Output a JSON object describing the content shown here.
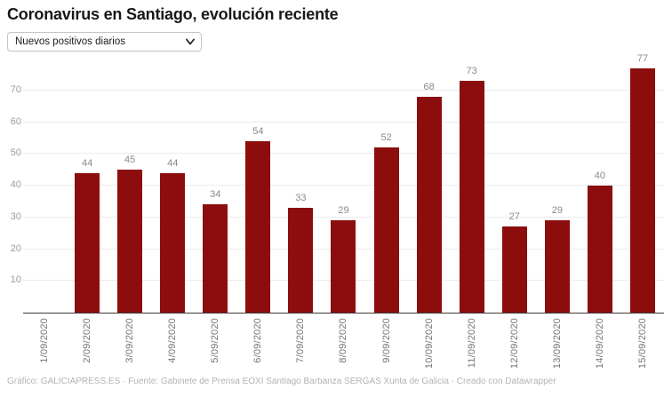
{
  "header": {
    "title": "Coronavirus en Santiago, evolución reciente",
    "metric_selector": {
      "selected": "Nuevos positivos diarios"
    }
  },
  "chart_data": {
    "type": "bar",
    "title": "Coronavirus en Santiago, evolución reciente",
    "categories": [
      "1/09/2020",
      "2/09/2020",
      "3/09/2020",
      "4/09/2020",
      "5/09/2020",
      "6/09/2020",
      "7/09/2020",
      "8/09/2020",
      "9/09/2020",
      "10/09/2020",
      "11/09/2020",
      "12/09/2020",
      "13/09/2020",
      "14/09/2020",
      "15/09/2020"
    ],
    "values": [
      null,
      44,
      45,
      44,
      34,
      54,
      33,
      29,
      52,
      68,
      73,
      27,
      29,
      40,
      77
    ],
    "y_ticks": [
      10,
      20,
      30,
      40,
      50,
      60,
      70
    ],
    "ylim": [
      0,
      80
    ],
    "xlabel": "",
    "ylabel": "",
    "grid": true,
    "value_labels": true,
    "legend": "none",
    "bar_color": "#8b0d0d"
  },
  "colors": {
    "bar": "#8b0d0d",
    "axis_line": "#3b3b3b",
    "gridline": "#ebebeb",
    "y_tick_label": "#9c9c9c",
    "value_label": "#8a8a8a",
    "x_tick_label": "#767676",
    "credit_text": "#b3b3b3"
  },
  "footer": {
    "credit": "Gráfico: GALICIAPRESS.ES · Fuente: Gabinete de Prensa EOXI Santiago Barbanza SERGAS Xunta de Galicia · Creado con Datawrapper"
  }
}
